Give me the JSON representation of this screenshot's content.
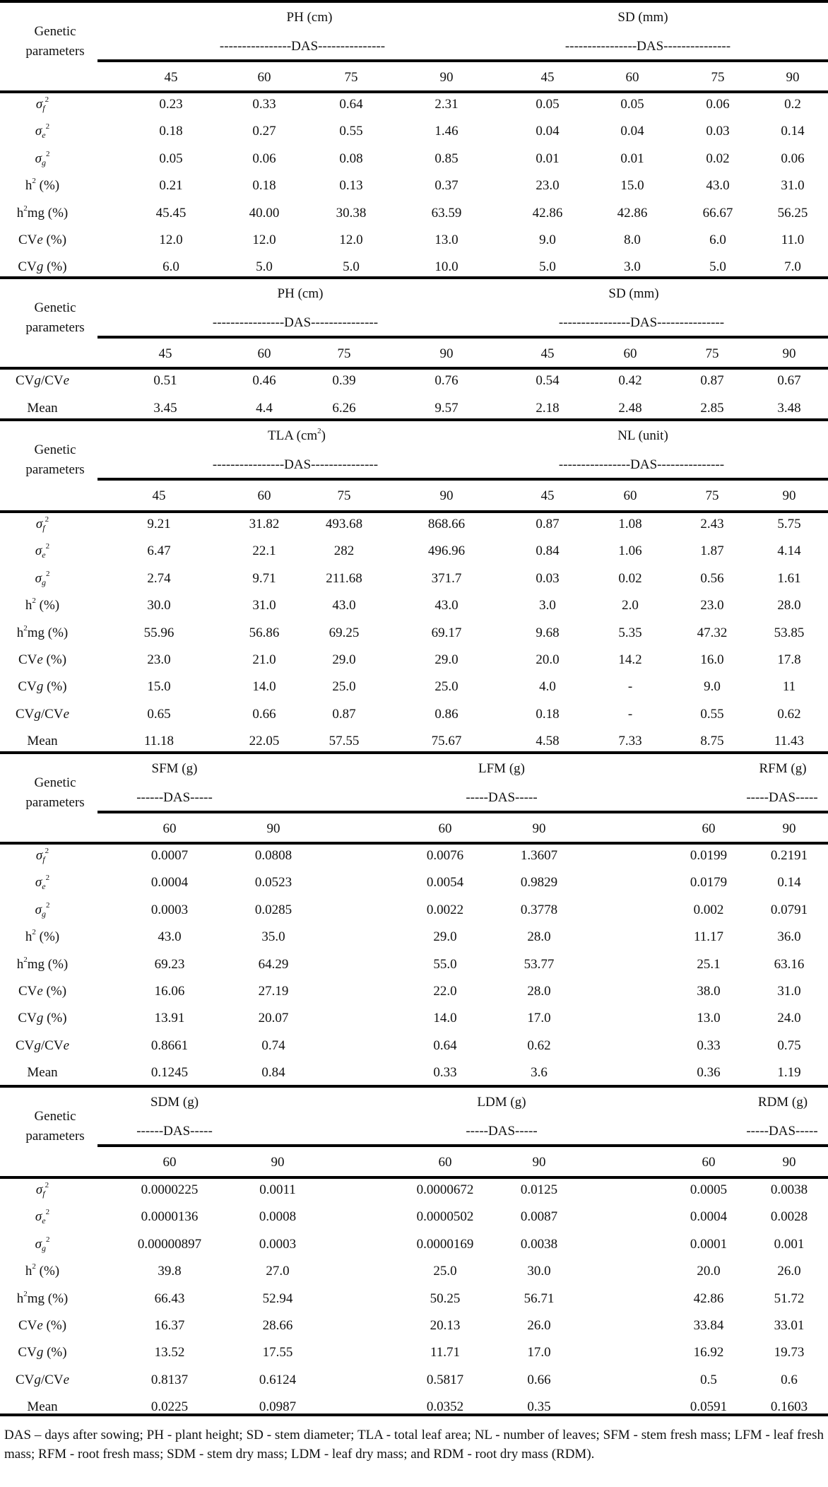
{
  "header_label": "Genetic parameters",
  "header_label_lines": [
    "Genetic",
    "parameters"
  ],
  "das_long": "----------------DAS---------------",
  "das_short_a": "------DAS-----",
  "das_short_b": "-----DAS-----",
  "row_labels": {
    "sigma_f": {
      "base": "σ",
      "sub": "f",
      "sup": "2"
    },
    "sigma_e": {
      "base": "σ",
      "sub": "e",
      "sup": "2"
    },
    "sigma_g": {
      "base": "σ",
      "sub": "g",
      "sup": "2"
    },
    "h2": "h² (%)",
    "h2mg": "h²mg (%)",
    "cve": "CVe (%)",
    "cvg": "CVg (%)",
    "ratio": "CVg/CVe",
    "mean": "Mean"
  },
  "blocks": [
    {
      "id": "ph-sd-part1",
      "groups": [
        {
          "title": "PH (cm)",
          "das": "----------------DAS---------------",
          "cols": [
            "45",
            "60",
            "75",
            "90"
          ]
        },
        {
          "title": "SD (mm)",
          "das": "----------------DAS---------------",
          "cols": [
            "45",
            "60",
            "75",
            "90"
          ]
        }
      ],
      "rows": [
        {
          "label": "σf²",
          "values": [
            "0.23",
            "0.33",
            "0.64",
            "2.31",
            "0.05",
            "0.05",
            "0.06",
            "0.2"
          ]
        },
        {
          "label": "σe²",
          "values": [
            "0.18",
            "0.27",
            "0.55",
            "1.46",
            "0.04",
            "0.04",
            "0.03",
            "0.14"
          ]
        },
        {
          "label": "σg²",
          "values": [
            "0.05",
            "0.06",
            "0.08",
            "0.85",
            "0.01",
            "0.01",
            "0.02",
            "0.06"
          ]
        },
        {
          "label": "h² (%)",
          "values": [
            "0.21",
            "0.18",
            "0.13",
            "0.37",
            "23.0",
            "15.0",
            "43.0",
            "31.0"
          ]
        },
        {
          "label": "h²mg (%)",
          "values": [
            "45.45",
            "40.00",
            "30.38",
            "63.59",
            "42.86",
            "42.86",
            "66.67",
            "56.25"
          ]
        },
        {
          "label": "CVe (%)",
          "values": [
            "12.0",
            "12.0",
            "12.0",
            "13.0",
            "9.0",
            "8.0",
            "6.0",
            "11.0"
          ]
        },
        {
          "label": "CVg (%)",
          "values": [
            "6.0",
            "5.0",
            "5.0",
            "10.0",
            "5.0",
            "3.0",
            "5.0",
            "7.0"
          ]
        }
      ]
    },
    {
      "id": "ph-sd-part2",
      "groups": [
        {
          "title": "PH (cm)",
          "das": "----------------DAS---------------",
          "cols": [
            "45",
            "60",
            "75",
            "90"
          ]
        },
        {
          "title": "SD (mm)",
          "das": "----------------DAS---------------",
          "cols": [
            "45",
            "60",
            "75",
            "90"
          ]
        }
      ],
      "rows": [
        {
          "label": "CVg/CVe",
          "values": [
            "0.51",
            "0.46",
            "0.39",
            "0.76",
            "0.54",
            "0.42",
            "0.87",
            "0.67"
          ]
        },
        {
          "label": "Mean",
          "values": [
            "3.45",
            "4.4",
            "6.26",
            "9.57",
            "2.18",
            "2.48",
            "2.85",
            "3.48"
          ]
        }
      ]
    },
    {
      "id": "tla-nl",
      "groups": [
        {
          "title": "TLA (cm²)",
          "das": "----------------DAS---------------",
          "cols": [
            "45",
            "60",
            "75",
            "90"
          ]
        },
        {
          "title": "NL (unit)",
          "das": "----------------DAS---------------",
          "cols": [
            "45",
            "60",
            "75",
            "90"
          ]
        }
      ],
      "rows": [
        {
          "label": "σf²",
          "values": [
            "9.21",
            "31.82",
            "493.68",
            "868.66",
            "0.87",
            "1.08",
            "2.43",
            "5.75"
          ]
        },
        {
          "label": "σe²",
          "values": [
            "6.47",
            "22.1",
            "282",
            "496.96",
            "0.84",
            "1.06",
            "1.87",
            "4.14"
          ]
        },
        {
          "label": "σg²",
          "values": [
            "2.74",
            "9.71",
            "211.68",
            "371.7",
            "0.03",
            "0.02",
            "0.56",
            "1.61"
          ]
        },
        {
          "label": "h² (%)",
          "values": [
            "30.0",
            "31.0",
            "43.0",
            "43.0",
            "3.0",
            "2.0",
            "23.0",
            "28.0"
          ]
        },
        {
          "label": "h²mg (%)",
          "values": [
            "55.96",
            "56.86",
            "69.25",
            "69.17",
            "9.68",
            "5.35",
            "47.32",
            "53.85"
          ]
        },
        {
          "label": "CVe (%)",
          "values": [
            "23.0",
            "21.0",
            "29.0",
            "29.0",
            "20.0",
            "14.2",
            "16.0",
            "17.8"
          ]
        },
        {
          "label": "CVg (%)",
          "values": [
            "15.0",
            "14.0",
            "25.0",
            "25.0",
            "4.0",
            "-",
            "9.0",
            "11"
          ]
        },
        {
          "label": "CVg/CVe",
          "values": [
            "0.65",
            "0.66",
            "0.87",
            "0.86",
            "0.18",
            "-",
            "0.55",
            "0.62"
          ]
        },
        {
          "label": "Mean",
          "values": [
            "11.18",
            "22.05",
            "57.55",
            "75.67",
            "4.58",
            "7.33",
            "8.75",
            "11.43"
          ]
        }
      ]
    },
    {
      "id": "fresh-mass",
      "groups": [
        {
          "title": "SFM (g)",
          "das": "------DAS-----",
          "cols": [
            "60",
            "90"
          ]
        },
        {
          "title": "LFM (g)",
          "das": "-----DAS-----",
          "cols": [
            "60",
            "90"
          ]
        },
        {
          "title": "RFM (g)",
          "das": "-----DAS-----",
          "cols": [
            "60",
            "90"
          ]
        }
      ],
      "rows": [
        {
          "label": "σf²",
          "values": [
            "0.0007",
            "0.0808",
            "0.0076",
            "1.3607",
            "0.0199",
            "0.2191"
          ]
        },
        {
          "label": "σe²",
          "values": [
            "0.0004",
            "0.0523",
            "0.0054",
            "0.9829",
            "0.0179",
            "0.14"
          ]
        },
        {
          "label": "σg²",
          "values": [
            "0.0003",
            "0.0285",
            "0.0022",
            "0.3778",
            "0.002",
            "0.0791"
          ]
        },
        {
          "label": "h² (%)",
          "values": [
            "43.0",
            "35.0",
            "29.0",
            "28.0",
            "11.17",
            "36.0"
          ]
        },
        {
          "label": "h²mg (%)",
          "values": [
            "69.23",
            "64.29",
            "55.0",
            "53.77",
            "25.1",
            "63.16"
          ]
        },
        {
          "label": "CVe (%)",
          "values": [
            "16.06",
            "27.19",
            "22.0",
            "28.0",
            "38.0",
            "31.0"
          ]
        },
        {
          "label": "CVg (%)",
          "values": [
            "13.91",
            "20.07",
            "14.0",
            "17.0",
            "13.0",
            "24.0"
          ]
        },
        {
          "label": "CVg/CVe",
          "values": [
            "0.8661",
            "0.74",
            "0.64",
            "0.62",
            "0.33",
            "0.75"
          ]
        },
        {
          "label": "Mean",
          "values": [
            "0.1245",
            "0.84",
            "0.33",
            "3.6",
            "0.36",
            "1.19"
          ]
        }
      ]
    },
    {
      "id": "dry-mass",
      "groups": [
        {
          "title": "SDM (g)",
          "das": "------DAS-----",
          "cols": [
            "60",
            "90"
          ]
        },
        {
          "title": "LDM (g)",
          "das": "-----DAS-----",
          "cols": [
            "60",
            "90"
          ]
        },
        {
          "title": "RDM (g)",
          "das": "-----DAS-----",
          "cols": [
            "60",
            "90"
          ]
        }
      ],
      "rows": [
        {
          "label": "σf²",
          "values": [
            "0.0000225",
            "0.0011",
            "0.0000672",
            "0.0125",
            "0.0005",
            "0.0038"
          ]
        },
        {
          "label": "σe²",
          "values": [
            "0.0000136",
            "0.0008",
            "0.0000502",
            "0.0087",
            "0.0004",
            "0.0028"
          ]
        },
        {
          "label": "σg²",
          "values": [
            "0.00000897",
            "0.0003",
            "0.0000169",
            "0.0038",
            "0.0001",
            "0.001"
          ]
        },
        {
          "label": "h² (%)",
          "values": [
            "39.8",
            "27.0",
            "25.0",
            "30.0",
            "20.0",
            "26.0"
          ]
        },
        {
          "label": "h²mg (%)",
          "values": [
            "66.43",
            "52.94",
            "50.25",
            "56.71",
            "42.86",
            "51.72"
          ]
        },
        {
          "label": "CVe (%)",
          "values": [
            "16.37",
            "28.66",
            "20.13",
            "26.0",
            "33.84",
            "33.01"
          ]
        },
        {
          "label": "CVg (%)",
          "values": [
            "13.52",
            "17.55",
            "11.71",
            "17.0",
            "16.92",
            "19.73"
          ]
        },
        {
          "label": "CVg/CVe",
          "values": [
            "0.8137",
            "0.6124",
            "0.5817",
            "0.66",
            "0.5",
            "0.6"
          ]
        },
        {
          "label": "Mean",
          "values": [
            "0.0225",
            "0.0987",
            "0.0352",
            "0.35",
            "0.0591",
            "0.1603"
          ]
        }
      ]
    }
  ],
  "footnote": "DAS – days after sowing; PH - plant height; SD - stem diameter; TLA - total leaf area; NL - number of leaves; SFM - stem fresh mass; LFM - leaf fresh mass; RFM - root fresh mass; SDM - stem dry mass; LDM - leaf dry mass; and RDM - root dry mass (RDM)."
}
